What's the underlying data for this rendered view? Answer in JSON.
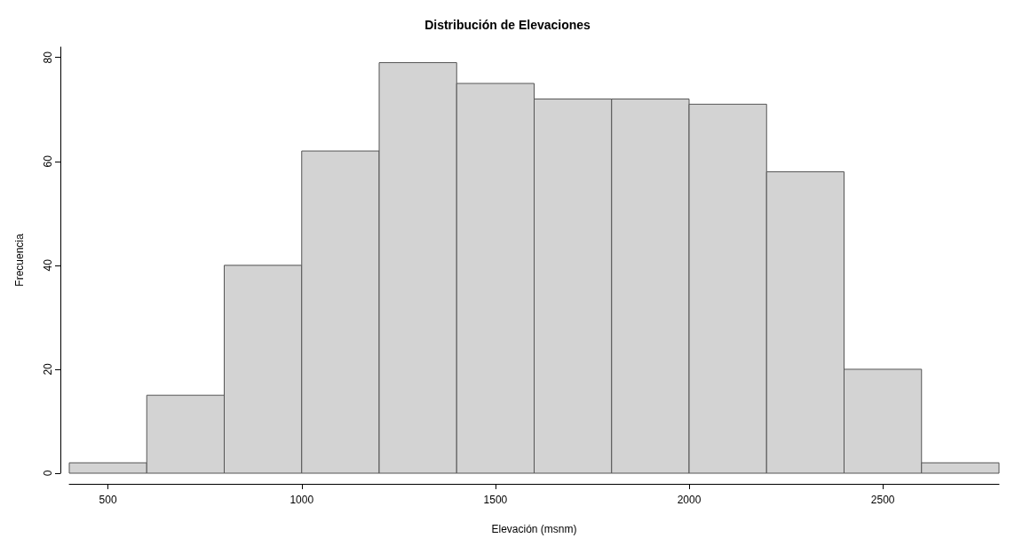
{
  "chart_data": {
    "type": "histogram",
    "title": "Distribución de Elevaciones",
    "xlabel": "Elevación (msnm)",
    "ylabel": "Frecuencia",
    "bins": [
      400,
      600,
      800,
      1000,
      1200,
      1400,
      1600,
      1800,
      2000,
      2200,
      2400,
      2600,
      2800
    ],
    "values": [
      2,
      15,
      40,
      62,
      79,
      75,
      72,
      72,
      71,
      58,
      20,
      2
    ],
    "color": "#d3d3d3",
    "xlim": [
      400,
      2800
    ],
    "xticks": [
      500,
      1000,
      1500,
      2000,
      2500
    ],
    "ylim": [
      0,
      82
    ],
    "yticks": [
      0,
      20,
      40,
      60,
      80
    ],
    "grid": false
  }
}
